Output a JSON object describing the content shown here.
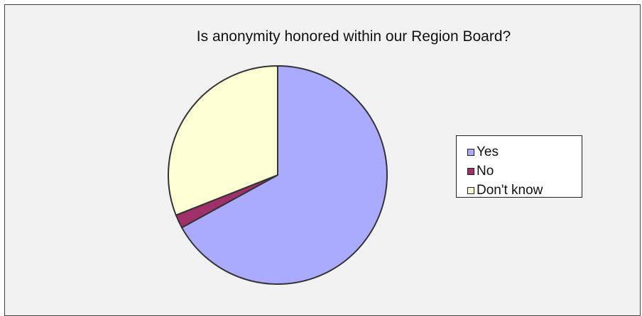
{
  "chart_data": {
    "type": "pie",
    "title": "Is anonymity honored within our Region Board?",
    "categories": [
      "Yes",
      "No",
      "Don't know"
    ],
    "values": [
      67,
      2,
      31
    ],
    "colors": [
      "#aaaaff",
      "#a0306a",
      "#ffffd6"
    ],
    "slice_stroke": "#333333",
    "legend_placement": "right"
  }
}
